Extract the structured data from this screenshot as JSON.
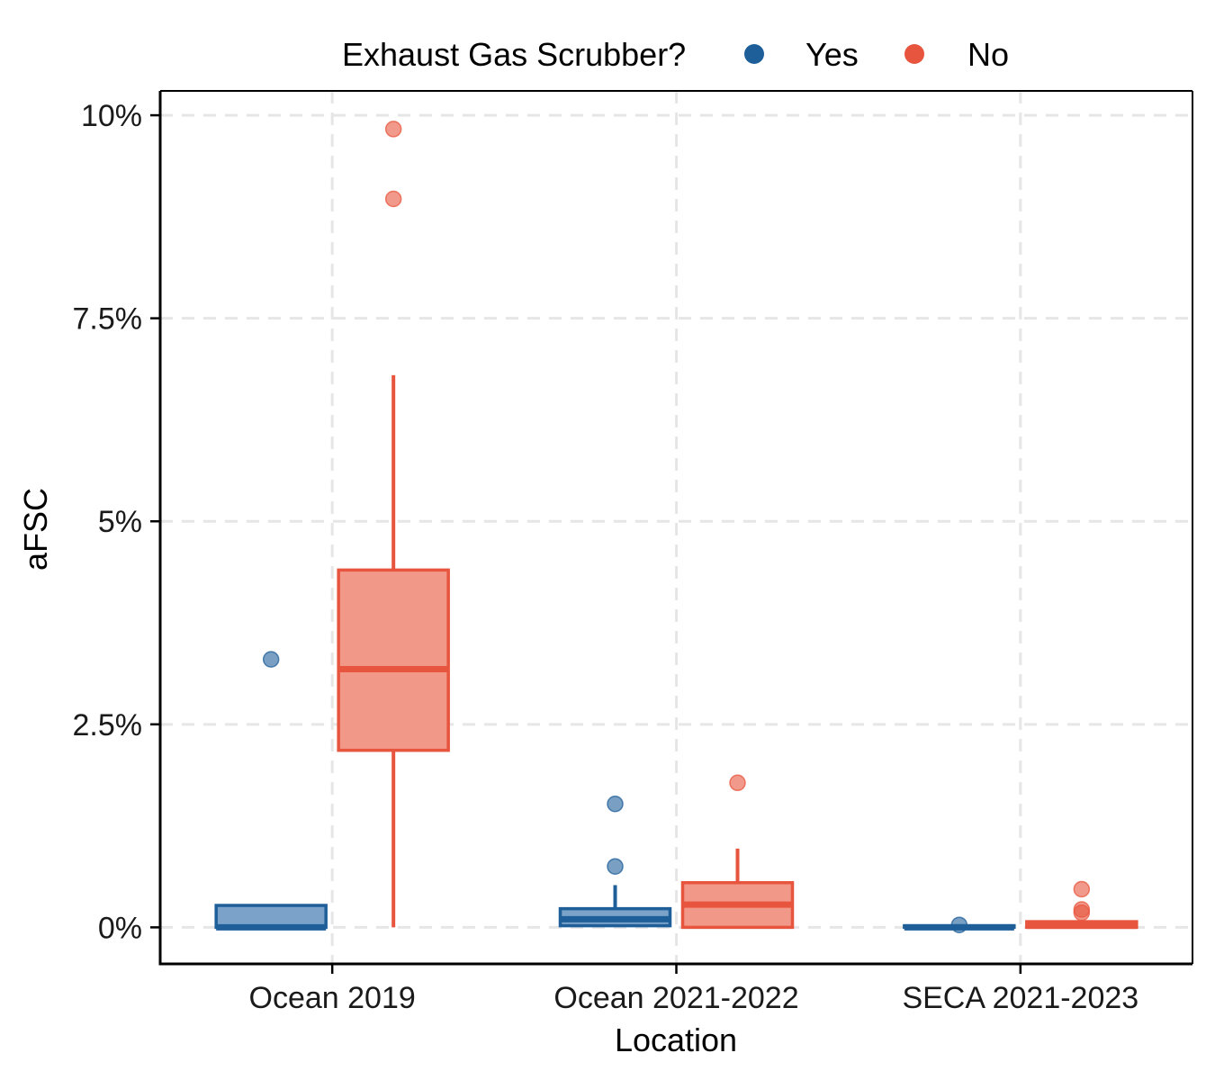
{
  "chart_data": {
    "type": "box",
    "xlabel": "Location",
    "ylabel": "aFSC",
    "categories": [
      "Ocean 2019",
      "Ocean 2021-2022",
      "SECA 2021-2023"
    ],
    "y_ticks": [
      {
        "value": 0,
        "label": "0%"
      },
      {
        "value": 2.5,
        "label": "2.5%"
      },
      {
        "value": 5,
        "label": "5%"
      },
      {
        "value": 7.5,
        "label": "7.5%"
      },
      {
        "value": 10,
        "label": "10%"
      }
    ],
    "ylim": [
      -0.45,
      10.3
    ],
    "grid": true,
    "legend": {
      "title": "Exhaust Gas Scrubber?",
      "position": "top",
      "entries": [
        {
          "label": "Yes",
          "color": "#1f5f99"
        },
        {
          "label": "No",
          "color": "#e8553e"
        }
      ]
    },
    "series": [
      {
        "name": "Yes",
        "color": "#1f5f99",
        "fill": "#7ba2c8",
        "boxes": [
          {
            "category": "Ocean 2019",
            "q1": 0,
            "median": 0,
            "q3": 0.27,
            "whisker_low": 0,
            "whisker_high": 0.27,
            "outliers": [
              3.3
            ]
          },
          {
            "category": "Ocean 2021-2022",
            "q1": 0.02,
            "median": 0.1,
            "q3": 0.23,
            "whisker_low": 0.02,
            "whisker_high": 0.52,
            "outliers": [
              0.75,
              1.52
            ]
          },
          {
            "category": "SECA 2021-2023",
            "q1": 0,
            "median": 0,
            "q3": 0.02,
            "whisker_low": 0,
            "whisker_high": 0.02,
            "outliers": [
              0.03
            ]
          }
        ]
      },
      {
        "name": "No",
        "color": "#e8553e",
        "fill": "#f29888",
        "boxes": [
          {
            "category": "Ocean 2019",
            "q1": 2.18,
            "median": 3.18,
            "q3": 4.4,
            "whisker_low": 0,
            "whisker_high": 6.8,
            "outliers": [
              8.97,
              9.83
            ]
          },
          {
            "category": "Ocean 2021-2022",
            "q1": 0,
            "median": 0.28,
            "q3": 0.55,
            "whisker_low": 0,
            "whisker_high": 0.97,
            "outliers": [
              1.78
            ]
          },
          {
            "category": "SECA 2021-2023",
            "q1": 0,
            "median": 0.02,
            "q3": 0.07,
            "whisker_low": 0,
            "whisker_high": 0.07,
            "outliers": [
              0.18,
              0.22,
              0.47
            ]
          }
        ]
      }
    ]
  }
}
